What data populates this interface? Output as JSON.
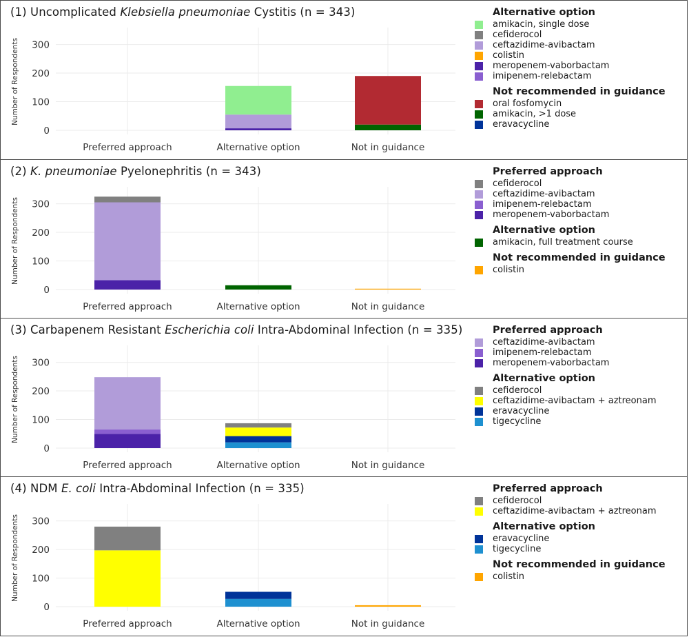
{
  "colors": {
    "amikacin_single": "#90ee90",
    "cefiderocol": "#808080",
    "ceftazidime_avibactam": "#b19cd9",
    "colistin": "#ffa500",
    "meropenem_vaborbactam": "#4b22a8",
    "imipenem_relebactam": "#8a5fd0",
    "oral_fosfomycin": "#b22a32",
    "amikacin_multi": "#006400",
    "eravacycline": "#003399",
    "caz_avi_aztreonam": "#ffff00",
    "tigecycline": "#1e90d0"
  },
  "chart_data": [
    {
      "type": "bar",
      "stacked": true,
      "title_parts": [
        {
          "text": "(1) Uncomplicated ",
          "italic": false
        },
        {
          "text": "Klebsiella pneumoniae",
          "italic": true
        },
        {
          "text": " Cystitis (n = 343)",
          "italic": false
        }
      ],
      "ylabel": "Number of Respondents",
      "ylim": [
        0,
        340
      ],
      "yticks": [
        0,
        100,
        200,
        300
      ],
      "categories": [
        "Preferred approach",
        "Alternative option",
        "Not in guidance"
      ],
      "stacks": [
        [],
        [
          {
            "drug": "meropenem-vaborbactam",
            "value": 7,
            "color": "#4b22a8"
          },
          {
            "drug": "ceftazidime-avibactam",
            "value": 48,
            "color": "#b19cd9"
          },
          {
            "drug": "amikacin, single dose",
            "value": 100,
            "color": "#90ee90"
          }
        ],
        [
          {
            "drug": "amikacin, >1 dose",
            "value": 20,
            "color": "#006400"
          },
          {
            "drug": "oral fosfomycin",
            "value": 170,
            "color": "#b22a32"
          }
        ]
      ],
      "legend": [
        {
          "title": "Alternative option",
          "items": [
            {
              "label": "amikacin, single dose",
              "color": "#90ee90"
            },
            {
              "label": "cefiderocol",
              "color": "#808080"
            },
            {
              "label": "ceftazidime-avibactam",
              "color": "#b19cd9"
            },
            {
              "label": "colistin",
              "color": "#ffa500"
            },
            {
              "label": "meropenem-vaborbactam",
              "color": "#4b22a8"
            },
            {
              "label": "imipenem-relebactam",
              "color": "#8a5fd0"
            }
          ]
        },
        {
          "title": "Not recommended in guidance",
          "items": [
            {
              "label": "oral fosfomycin",
              "color": "#b22a32"
            },
            {
              "label": "amikacin, >1 dose",
              "color": "#006400"
            },
            {
              "label": "eravacycline",
              "color": "#003399"
            }
          ]
        }
      ]
    },
    {
      "type": "bar",
      "stacked": true,
      "title_parts": [
        {
          "text": "(2) ",
          "italic": false
        },
        {
          "text": "K. pneumoniae",
          "italic": true
        },
        {
          "text": " Pyelonephritis (n = 343)",
          "italic": false
        }
      ],
      "ylabel": "Number of Respondents",
      "ylim": [
        0,
        340
      ],
      "yticks": [
        0,
        100,
        200,
        300
      ],
      "categories": [
        "Preferred approach",
        "Alternative option",
        "Not in guidance"
      ],
      "stacks": [
        [
          {
            "drug": "meropenem-vaborbactam",
            "value": 33,
            "color": "#4b22a8"
          },
          {
            "drug": "ceftazidime-avibactam",
            "value": 272,
            "color": "#b19cd9"
          },
          {
            "drug": "cefiderocol",
            "value": 20,
            "color": "#808080"
          }
        ],
        [
          {
            "drug": "amikacin, full treatment course",
            "value": 15,
            "color": "#006400"
          }
        ],
        [
          {
            "drug": "colistin",
            "value": 3,
            "color": "#ffa500"
          }
        ]
      ],
      "legend": [
        {
          "title": "Preferred approach",
          "items": [
            {
              "label": "cefiderocol",
              "color": "#808080"
            },
            {
              "label": "ceftazidime-avibactam",
              "color": "#b19cd9"
            },
            {
              "label": "imipenem-relebactam",
              "color": "#8a5fd0"
            },
            {
              "label": "meropenem-vaborbactam",
              "color": "#4b22a8"
            }
          ]
        },
        {
          "title": "Alternative option",
          "items": [
            {
              "label": "amikacin, full treatment course",
              "color": "#006400"
            }
          ]
        },
        {
          "title": "Not recommended in guidance",
          "items": [
            {
              "label": "colistin",
              "color": "#ffa500"
            }
          ]
        }
      ]
    },
    {
      "type": "bar",
      "stacked": true,
      "title_parts": [
        {
          "text": "(3) Carbapenem Resistant ",
          "italic": false
        },
        {
          "text": "Escherichia coli",
          "italic": true
        },
        {
          "text": " Intra-Abdominal Infection (n = 335)",
          "italic": false
        }
      ],
      "ylabel": "Number of Respondents",
      "ylim": [
        0,
        340
      ],
      "yticks": [
        0,
        100,
        200,
        300
      ],
      "categories": [
        "Preferred approach",
        "Alternative option",
        "Not in guidance"
      ],
      "stacks": [
        [
          {
            "drug": "meropenem-vaborbactam",
            "value": 50,
            "color": "#4b22a8"
          },
          {
            "drug": "imipenem-relebactam",
            "value": 15,
            "color": "#8a5fd0"
          },
          {
            "drug": "ceftazidime-avibactam",
            "value": 183,
            "color": "#b19cd9"
          }
        ],
        [
          {
            "drug": "tigecycline",
            "value": 20,
            "color": "#1e90d0"
          },
          {
            "drug": "eravacycline",
            "value": 22,
            "color": "#003399"
          },
          {
            "drug": "ceftazidime-avibactam + aztreonam",
            "value": 30,
            "color": "#ffff00"
          },
          {
            "drug": "cefiderocol",
            "value": 15,
            "color": "#808080"
          }
        ],
        []
      ],
      "legend": [
        {
          "title": "Preferred approach",
          "items": [
            {
              "label": "ceftazidime-avibactam",
              "color": "#b19cd9"
            },
            {
              "label": "imipenem-relebactam",
              "color": "#8a5fd0"
            },
            {
              "label": "meropenem-vaborbactam",
              "color": "#4b22a8"
            }
          ]
        },
        {
          "title": "Alternative option",
          "items": [
            {
              "label": "cefiderocol",
              "color": "#808080"
            },
            {
              "label": "ceftazidime-avibactam + aztreonam",
              "color": "#ffff00"
            },
            {
              "label": "eravacycline",
              "color": "#003399"
            },
            {
              "label": "tigecycline",
              "color": "#1e90d0"
            }
          ]
        }
      ]
    },
    {
      "type": "bar",
      "stacked": true,
      "title_parts": [
        {
          "text": "(4) NDM ",
          "italic": false
        },
        {
          "text": "E. coli",
          "italic": true
        },
        {
          "text": " Intra-Abdominal Infection (n = 335)",
          "italic": false
        }
      ],
      "ylabel": "Number of Respondents",
      "ylim": [
        0,
        340
      ],
      "yticks": [
        0,
        100,
        200,
        300
      ],
      "categories": [
        "Preferred approach",
        "Alternative option",
        "Not in guidance"
      ],
      "stacks": [
        [
          {
            "drug": "ceftazidime-avibactam + aztreonam",
            "value": 197,
            "color": "#ffff00"
          },
          {
            "drug": "cefiderocol",
            "value": 83,
            "color": "#808080"
          }
        ],
        [
          {
            "drug": "tigecycline",
            "value": 27,
            "color": "#1e90d0"
          },
          {
            "drug": "eravacycline",
            "value": 25,
            "color": "#003399"
          }
        ],
        [
          {
            "drug": "colistin",
            "value": 5,
            "color": "#ffa500"
          }
        ]
      ],
      "legend": [
        {
          "title": "Preferred approach",
          "items": [
            {
              "label": "cefiderocol",
              "color": "#808080"
            },
            {
              "label": "ceftazidime-avibactam + aztreonam",
              "color": "#ffff00"
            }
          ]
        },
        {
          "title": "Alternative option",
          "items": [
            {
              "label": "eravacycline",
              "color": "#003399"
            },
            {
              "label": "tigecycline",
              "color": "#1e90d0"
            }
          ]
        },
        {
          "title": "Not recommended in guidance",
          "items": [
            {
              "label": "colistin",
              "color": "#ffa500"
            }
          ]
        }
      ]
    }
  ]
}
